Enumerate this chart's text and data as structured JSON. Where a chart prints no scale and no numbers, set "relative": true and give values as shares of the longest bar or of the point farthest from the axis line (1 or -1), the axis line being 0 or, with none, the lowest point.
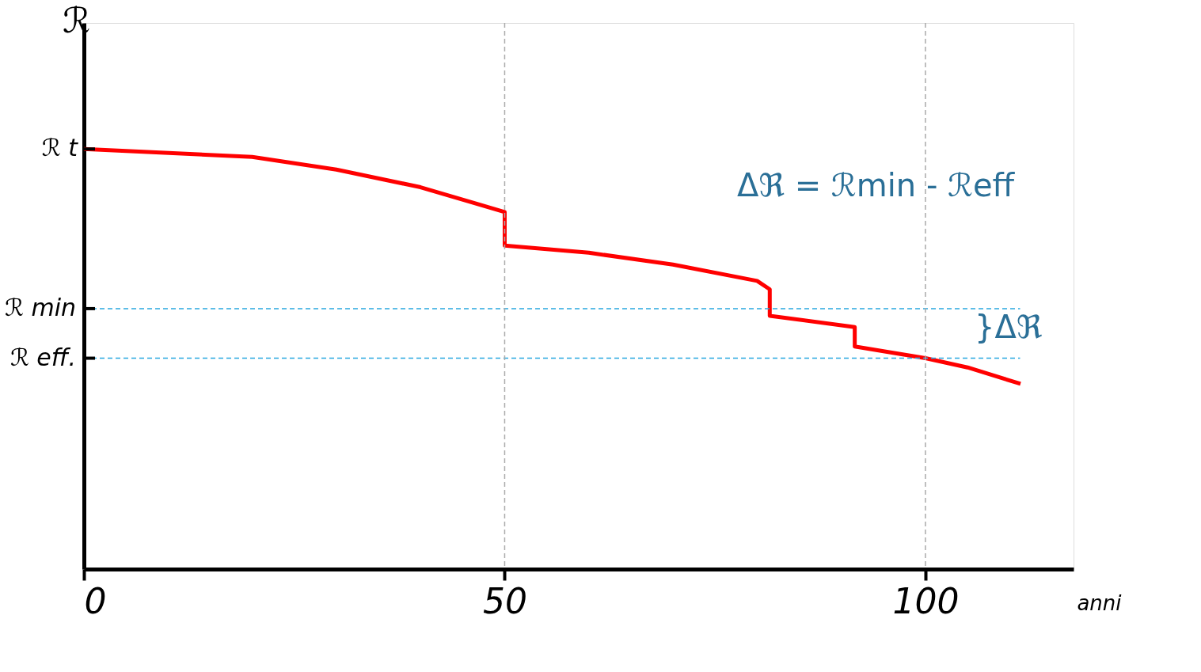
{
  "chart_data": {
    "type": "line",
    "relative": true,
    "xlabel": "anni",
    "ylabel": "ℛ",
    "x": [
      0,
      20,
      30,
      40,
      50,
      50,
      60,
      70,
      80,
      81.5,
      81.5,
      91.6,
      91.6,
      100,
      105,
      111.3
    ],
    "xlim": [
      0,
      117.6
    ],
    "xticks": [
      0,
      50,
      100
    ],
    "grid": false,
    "marker": "none",
    "line_style": "solid",
    "series": [
      {
        "color": "#ff0000",
        "values": [
          1.0,
          0.981,
          0.951,
          0.909,
          0.85,
          0.77,
          0.753,
          0.725,
          0.686,
          0.666,
          0.603,
          0.576,
          0.53,
          0.502,
          0.48,
          0.441
        ]
      }
    ],
    "ref_lines": [
      {
        "axis": "y",
        "value": 0.62,
        "label": "ℛ min",
        "color": "#29a8e0",
        "line_style": "dashed"
      },
      {
        "axis": "y",
        "value": 0.502,
        "label": "ℛ eff.",
        "color": "#29a8e0",
        "line_style": "dashed"
      },
      {
        "axis": "x",
        "value": 50,
        "color": "#aaaaaa",
        "line_style": "dashed"
      },
      {
        "axis": "x",
        "value": 100,
        "color": "#aaaaaa",
        "line_style": "dashed"
      }
    ],
    "annotations": [
      {
        "text": "ℛ t",
        "x": 0,
        "y": 1.0
      },
      "Δℜ = ℛmin - ℛeff",
      "}Δℜ"
    ]
  }
}
